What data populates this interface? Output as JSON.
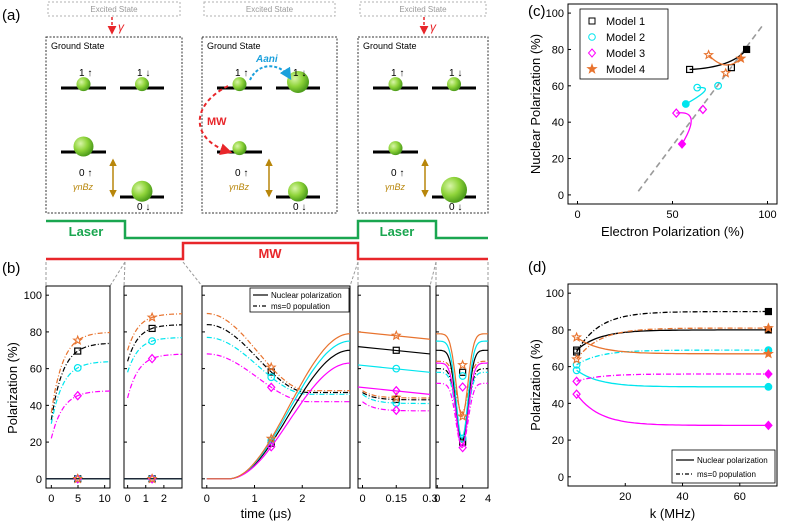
{
  "panel_labels": {
    "a": "(a)",
    "b": "(b)",
    "c": "(c)",
    "d": "(d)"
  },
  "level_diagram": {
    "excited_label": "Excited State",
    "ground_label": "Ground State",
    "gamma": "γ",
    "level_1_up": "1 ↑",
    "level_1_down": "1 ↓",
    "level_0_up": "0 ↑",
    "level_0_down": "0 ↓",
    "zeeman_label": "γnBz",
    "mw_label": "MW",
    "aani_label": "Aani",
    "boxes": [
      {
        "title": "Ground State",
        "excited": "Excited State",
        "pop_1up": 0.3,
        "pop_1down": 0.3,
        "pop_0up": 0.6,
        "pop_0down": 0.65
      },
      {
        "title": "Ground State",
        "excited": "Excited State",
        "pop_1up": 0.3,
        "pop_1down": 0.7,
        "pop_0up": 0.3,
        "pop_0down": 0.6
      },
      {
        "title": "Ground State",
        "excited": "Excited State",
        "pop_1up": 0.3,
        "pop_1down": 0.3,
        "pop_0up": 0.3,
        "pop_0down": 0.9
      }
    ]
  },
  "pulse_sequence": {
    "laser_label": "Laser",
    "mw_label": "MW",
    "laser_color": "#1aa650",
    "mw_color": "#e8262a"
  },
  "colors": {
    "model1": "#000000",
    "model2": "#00e5ee",
    "model3": "#ff00ff",
    "model4": "#e8732e",
    "diag": "#9a9a9a",
    "ball": "#7ed321"
  },
  "chart_data": [
    {
      "panel": "b",
      "type": "line",
      "ylabel": "Polarization (%)",
      "xlabel": "time (μs)",
      "ylim": [
        -5,
        105
      ],
      "yticks": [
        "0",
        "20",
        "40",
        "60",
        "80",
        "100"
      ],
      "legend": [
        "Nuclear polarization",
        "ms=0 population"
      ],
      "subpanels": [
        {
          "xlim": [
            -1,
            11
          ],
          "xticks": [
            "0",
            "5",
            "10"
          ],
          "series_pop": [
            {
              "model": 1,
              "start": 32,
              "end": 74
            },
            {
              "model": 2,
              "start": 30,
              "end": 64
            },
            {
              "model": 3,
              "start": 22,
              "end": 48
            },
            {
              "model": 4,
              "start": 36,
              "end": 80
            }
          ],
          "nuclear": [
            0,
            0,
            0,
            0
          ]
        },
        {
          "xlim": [
            -0.2,
            3
          ],
          "xticks": [
            "0",
            "1",
            "2"
          ],
          "series_pop": [
            {
              "model": 1,
              "start": 64,
              "end": 84
            },
            {
              "model": 2,
              "start": 58,
              "end": 77
            },
            {
              "model": 3,
              "start": 44,
              "end": 68
            },
            {
              "model": 4,
              "start": 70,
              "end": 90
            }
          ],
          "nuclear": [
            0,
            0,
            0,
            0
          ]
        },
        {
          "xlim": [
            -0.1,
            3
          ],
          "xticks": [
            "0",
            "1",
            "2"
          ],
          "series_pop": [
            {
              "model": 1,
              "start": 84,
              "end": 47
            },
            {
              "model": 2,
              "start": 77,
              "end": 46
            },
            {
              "model": 3,
              "start": 68,
              "end": 42
            },
            {
              "model": 4,
              "start": 90,
              "end": 48
            }
          ],
          "nuclear_end": [
            {
              "model": 1,
              "end": 70
            },
            {
              "model": 2,
              "end": 75
            },
            {
              "model": 3,
              "end": 63
            },
            {
              "model": 4,
              "end": 79
            }
          ]
        },
        {
          "xlim": [
            -0.02,
            0.3
          ],
          "xticks": [
            "0",
            "0.15",
            "0.3"
          ],
          "series_pop": [
            {
              "model": 1,
              "start": 47,
              "end": 43
            },
            {
              "model": 2,
              "start": 46,
              "end": 41
            },
            {
              "model": 3,
              "start": 42,
              "end": 37
            },
            {
              "model": 4,
              "start": 48,
              "end": 44
            }
          ],
          "nuclear_lines": [
            {
              "model": 1,
              "value": 70
            },
            {
              "model": 2,
              "value": 60
            },
            {
              "model": 3,
              "value": 48
            },
            {
              "model": 4,
              "value": 78
            }
          ]
        },
        {
          "xlim": [
            -0.1,
            4
          ],
          "xticks": [
            "0",
            "2",
            "4"
          ],
          "dips": [
            {
              "model": 1,
              "base": 70,
              "min": 20
            },
            {
              "model": 2,
              "base": 75,
              "min": 22
            },
            {
              "model": 3,
              "base": 63,
              "min": 17
            },
            {
              "model": 4,
              "base": 79,
              "min": 34
            }
          ],
          "pop_dips": [
            {
              "model": 1,
              "base": 60,
              "min": 22
            },
            {
              "model": 2,
              "base": 58,
              "min": 20
            },
            {
              "model": 3,
              "base": 52,
              "min": 17
            },
            {
              "model": 4,
              "base": 64,
              "min": 36
            }
          ]
        }
      ]
    },
    {
      "panel": "c",
      "type": "scatter",
      "xlabel": "Electron Polarization (%)",
      "ylabel": "Nuclear Polarization (%)",
      "xlim": [
        -5,
        105
      ],
      "ylim": [
        -5,
        105
      ],
      "xticks": [
        "0",
        "50",
        "100"
      ],
      "yticks": [
        "0",
        "20",
        "40",
        "60",
        "80",
        "100"
      ],
      "legend": [
        "Model 1",
        "Model 2",
        "Model 3",
        "Model 4"
      ],
      "series": [
        {
          "name": "Model 1",
          "points": [
            [
              59,
              69
            ],
            [
              81,
              70
            ],
            [
              89,
              80
            ]
          ]
        },
        {
          "name": "Model 2",
          "points": [
            [
              63,
              59
            ],
            [
              74,
              60
            ],
            [
              57,
              50
            ]
          ]
        },
        {
          "name": "Model 3",
          "points": [
            [
              52,
              45
            ],
            [
              66,
              47
            ],
            [
              55,
              28
            ]
          ]
        },
        {
          "name": "Model 4",
          "points": [
            [
              69,
              77
            ],
            [
              78,
              67
            ],
            [
              86,
              75
            ]
          ]
        }
      ],
      "diagonal": [
        [
          32,
          2
        ],
        [
          98,
          94
        ]
      ]
    },
    {
      "panel": "d",
      "type": "line",
      "xlabel": "k (MHz)",
      "ylabel": "Polarization (%)",
      "xlim": [
        0,
        73
      ],
      "ylim": [
        -5,
        105
      ],
      "xticks": [
        "20",
        "40",
        "60"
      ],
      "yticks": [
        "0",
        "20",
        "40",
        "60",
        "80",
        "100"
      ],
      "legend": [
        "Nuclear polarization",
        "ms=0 population"
      ],
      "series": [
        {
          "name": "Model 1",
          "nuclear": [
            [
              3,
              69
            ],
            [
              70,
              80
            ]
          ],
          "population": [
            [
              3,
              68
            ],
            [
              70,
              90
            ]
          ]
        },
        {
          "name": "Model 2",
          "nuclear": [
            [
              3,
              58
            ],
            [
              70,
              49
            ]
          ],
          "population": [
            [
              3,
              61
            ],
            [
              70,
              69
            ]
          ]
        },
        {
          "name": "Model 3",
          "nuclear": [
            [
              3,
              45
            ],
            [
              70,
              28
            ]
          ],
          "population": [
            [
              3,
              52
            ],
            [
              70,
              56
            ]
          ]
        },
        {
          "name": "Model 4",
          "nuclear": [
            [
              3,
              76
            ],
            [
              70,
              67
            ]
          ],
          "population": [
            [
              3,
              64
            ],
            [
              70,
              81
            ]
          ]
        }
      ]
    }
  ]
}
